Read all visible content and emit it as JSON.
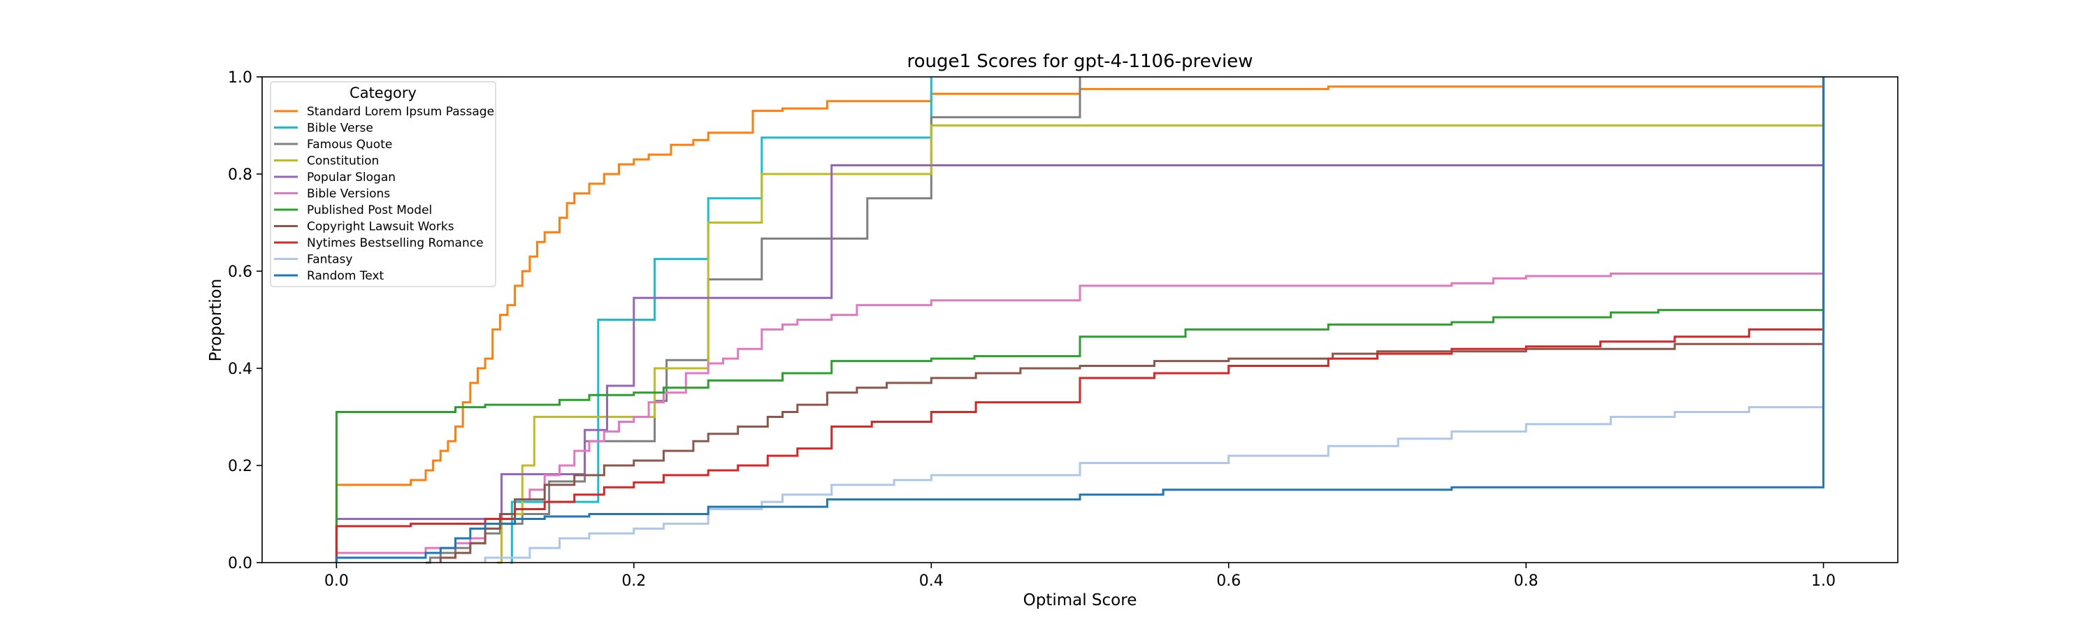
{
  "chart_data": {
    "type": "line",
    "subtype": "ecdf-step",
    "title": "rouge1 Scores for gpt-4-1106-preview",
    "xlabel": "Optimal Score",
    "ylabel": "Proportion",
    "xlim": [
      -0.05,
      1.05
    ],
    "ylim": [
      0,
      1.0
    ],
    "xticks": [
      0.0,
      0.2,
      0.4,
      0.6,
      0.8,
      1.0
    ],
    "xtick_labels": [
      "0.0",
      "0.2",
      "0.4",
      "0.6",
      "0.8",
      "1.0"
    ],
    "yticks": [
      0.0,
      0.2,
      0.4,
      0.6,
      0.8,
      1.0
    ],
    "ytick_labels": [
      "0.0",
      "0.2",
      "0.4",
      "0.6",
      "0.8",
      "1.0"
    ],
    "grid": false,
    "legend": {
      "title": "Category",
      "placement": "top-left"
    },
    "series": [
      {
        "name": "Standard Lorem Ipsum Passage",
        "color": "#ff7f0e",
        "points": [
          [
            0,
            0.16
          ],
          [
            0.05,
            0.17
          ],
          [
            0.06,
            0.19
          ],
          [
            0.065,
            0.21
          ],
          [
            0.07,
            0.23
          ],
          [
            0.075,
            0.25
          ],
          [
            0.08,
            0.28
          ],
          [
            0.085,
            0.33
          ],
          [
            0.09,
            0.37
          ],
          [
            0.095,
            0.4
          ],
          [
            0.1,
            0.42
          ],
          [
            0.105,
            0.48
          ],
          [
            0.11,
            0.51
          ],
          [
            0.115,
            0.53
          ],
          [
            0.12,
            0.57
          ],
          [
            0.125,
            0.6
          ],
          [
            0.13,
            0.63
          ],
          [
            0.135,
            0.66
          ],
          [
            0.14,
            0.68
          ],
          [
            0.15,
            0.71
          ],
          [
            0.155,
            0.74
          ],
          [
            0.16,
            0.76
          ],
          [
            0.17,
            0.78
          ],
          [
            0.18,
            0.8
          ],
          [
            0.19,
            0.82
          ],
          [
            0.2,
            0.83
          ],
          [
            0.21,
            0.84
          ],
          [
            0.225,
            0.86
          ],
          [
            0.24,
            0.87
          ],
          [
            0.25,
            0.885
          ],
          [
            0.28,
            0.93
          ],
          [
            0.3,
            0.935
          ],
          [
            0.33,
            0.95
          ],
          [
            0.4,
            0.965
          ],
          [
            0.5,
            0.975
          ],
          [
            0.667,
            0.98
          ],
          [
            1.0,
            1.0
          ]
        ]
      },
      {
        "name": "Bible Verse",
        "color": "#17becf",
        "points": [
          [
            0.117,
            0
          ],
          [
            0.118,
            0.125
          ],
          [
            0.176,
            0.5
          ],
          [
            0.214,
            0.625
          ],
          [
            0.25,
            0.75
          ],
          [
            0.286,
            0.875
          ],
          [
            0.4,
            1.0
          ]
        ]
      },
      {
        "name": "Famous Quote",
        "color": "#7f7f7f",
        "points": [
          [
            0.06,
            0
          ],
          [
            0.063,
            0.01
          ],
          [
            0.07,
            0.02
          ],
          [
            0.08,
            0.03
          ],
          [
            0.09,
            0.04
          ],
          [
            0.1,
            0.06
          ],
          [
            0.11,
            0.08
          ],
          [
            0.125,
            0.1
          ],
          [
            0.143,
            0.167
          ],
          [
            0.167,
            0.25
          ],
          [
            0.214,
            0.333
          ],
          [
            0.222,
            0.417
          ],
          [
            0.25,
            0.583
          ],
          [
            0.286,
            0.667
          ],
          [
            0.333,
            0.667
          ],
          [
            0.357,
            0.75
          ],
          [
            0.4,
            0.917
          ],
          [
            0.5,
            1.0
          ]
        ]
      },
      {
        "name": "Constitution",
        "color": "#bcbd22",
        "points": [
          [
            0.108,
            0
          ],
          [
            0.111,
            0.1
          ],
          [
            0.125,
            0.2
          ],
          [
            0.133,
            0.3
          ],
          [
            0.2,
            0.3
          ],
          [
            0.214,
            0.4
          ],
          [
            0.25,
            0.7
          ],
          [
            0.286,
            0.8
          ],
          [
            0.4,
            0.9
          ],
          [
            1.0,
            1.0
          ]
        ]
      },
      {
        "name": "Popular Slogan",
        "color": "#9467bd",
        "points": [
          [
            0,
            0.09
          ],
          [
            0.111,
            0.182
          ],
          [
            0.143,
            0.182
          ],
          [
            0.167,
            0.273
          ],
          [
            0.182,
            0.364
          ],
          [
            0.2,
            0.545
          ],
          [
            0.333,
            0.818
          ],
          [
            1.0,
            1.0
          ]
        ]
      },
      {
        "name": "Bible Versions",
        "color": "#e377c2",
        "points": [
          [
            0,
            0.02
          ],
          [
            0.06,
            0.03
          ],
          [
            0.08,
            0.04
          ],
          [
            0.09,
            0.05
          ],
          [
            0.1,
            0.07
          ],
          [
            0.11,
            0.1
          ],
          [
            0.12,
            0.13
          ],
          [
            0.13,
            0.15
          ],
          [
            0.14,
            0.18
          ],
          [
            0.15,
            0.2
          ],
          [
            0.16,
            0.23
          ],
          [
            0.17,
            0.25
          ],
          [
            0.18,
            0.27
          ],
          [
            0.19,
            0.29
          ],
          [
            0.2,
            0.3
          ],
          [
            0.21,
            0.33
          ],
          [
            0.22,
            0.35
          ],
          [
            0.235,
            0.39
          ],
          [
            0.25,
            0.41
          ],
          [
            0.26,
            0.42
          ],
          [
            0.27,
            0.44
          ],
          [
            0.286,
            0.48
          ],
          [
            0.3,
            0.49
          ],
          [
            0.31,
            0.5
          ],
          [
            0.333,
            0.51
          ],
          [
            0.35,
            0.53
          ],
          [
            0.4,
            0.54
          ],
          [
            0.5,
            0.57
          ],
          [
            0.6,
            0.57
          ],
          [
            0.75,
            0.575
          ],
          [
            0.778,
            0.585
          ],
          [
            0.8,
            0.59
          ],
          [
            0.857,
            0.595
          ],
          [
            1.0,
            1.0
          ]
        ]
      },
      {
        "name": "Published Post Model",
        "color": "#2ca02c",
        "points": [
          [
            0,
            0.31
          ],
          [
            0.08,
            0.32
          ],
          [
            0.1,
            0.325
          ],
          [
            0.15,
            0.335
          ],
          [
            0.17,
            0.345
          ],
          [
            0.2,
            0.35
          ],
          [
            0.22,
            0.36
          ],
          [
            0.25,
            0.375
          ],
          [
            0.3,
            0.39
          ],
          [
            0.333,
            0.415
          ],
          [
            0.4,
            0.42
          ],
          [
            0.429,
            0.425
          ],
          [
            0.5,
            0.465
          ],
          [
            0.571,
            0.48
          ],
          [
            0.667,
            0.49
          ],
          [
            0.75,
            0.495
          ],
          [
            0.778,
            0.505
          ],
          [
            0.857,
            0.515
          ],
          [
            0.889,
            0.52
          ],
          [
            1.0,
            1.0
          ]
        ]
      },
      {
        "name": "Copyright Lawsuit Works",
        "color": "#8c564b",
        "points": [
          [
            0.07,
            0.01
          ],
          [
            0.08,
            0.02
          ],
          [
            0.09,
            0.04
          ],
          [
            0.1,
            0.07
          ],
          [
            0.11,
            0.1
          ],
          [
            0.12,
            0.13
          ],
          [
            0.14,
            0.16
          ],
          [
            0.16,
            0.18
          ],
          [
            0.18,
            0.2
          ],
          [
            0.2,
            0.21
          ],
          [
            0.22,
            0.23
          ],
          [
            0.24,
            0.25
          ],
          [
            0.25,
            0.265
          ],
          [
            0.27,
            0.28
          ],
          [
            0.29,
            0.3
          ],
          [
            0.3,
            0.31
          ],
          [
            0.31,
            0.325
          ],
          [
            0.33,
            0.35
          ],
          [
            0.35,
            0.36
          ],
          [
            0.37,
            0.37
          ],
          [
            0.4,
            0.38
          ],
          [
            0.43,
            0.39
          ],
          [
            0.46,
            0.4
          ],
          [
            0.5,
            0.405
          ],
          [
            0.55,
            0.415
          ],
          [
            0.6,
            0.42
          ],
          [
            0.67,
            0.43
          ],
          [
            0.7,
            0.435
          ],
          [
            0.8,
            0.44
          ],
          [
            0.9,
            0.45
          ],
          [
            1.0,
            1.0
          ]
        ]
      },
      {
        "name": "Nytimes Bestselling Romance",
        "color": "#d62728",
        "points": [
          [
            0,
            0.075
          ],
          [
            0.05,
            0.08
          ],
          [
            0.1,
            0.09
          ],
          [
            0.12,
            0.11
          ],
          [
            0.14,
            0.125
          ],
          [
            0.16,
            0.14
          ],
          [
            0.18,
            0.155
          ],
          [
            0.2,
            0.165
          ],
          [
            0.22,
            0.18
          ],
          [
            0.25,
            0.19
          ],
          [
            0.27,
            0.2
          ],
          [
            0.29,
            0.22
          ],
          [
            0.31,
            0.235
          ],
          [
            0.333,
            0.28
          ],
          [
            0.36,
            0.29
          ],
          [
            0.4,
            0.31
          ],
          [
            0.43,
            0.33
          ],
          [
            0.5,
            0.38
          ],
          [
            0.55,
            0.39
          ],
          [
            0.6,
            0.405
          ],
          [
            0.667,
            0.42
          ],
          [
            0.7,
            0.43
          ],
          [
            0.75,
            0.44
          ],
          [
            0.8,
            0.445
          ],
          [
            0.85,
            0.455
          ],
          [
            0.9,
            0.465
          ],
          [
            0.95,
            0.48
          ],
          [
            1.0,
            1.0
          ]
        ]
      },
      {
        "name": "Fantasy",
        "color": "#aec7e8",
        "points": [
          [
            0.1,
            0.01
          ],
          [
            0.13,
            0.03
          ],
          [
            0.15,
            0.05
          ],
          [
            0.17,
            0.06
          ],
          [
            0.2,
            0.07
          ],
          [
            0.22,
            0.08
          ],
          [
            0.25,
            0.11
          ],
          [
            0.286,
            0.125
          ],
          [
            0.3,
            0.14
          ],
          [
            0.333,
            0.16
          ],
          [
            0.375,
            0.17
          ],
          [
            0.4,
            0.18
          ],
          [
            0.5,
            0.205
          ],
          [
            0.6,
            0.22
          ],
          [
            0.667,
            0.24
          ],
          [
            0.714,
            0.255
          ],
          [
            0.75,
            0.27
          ],
          [
            0.8,
            0.285
          ],
          [
            0.857,
            0.3
          ],
          [
            0.9,
            0.31
          ],
          [
            0.95,
            0.32
          ],
          [
            1.0,
            1.0
          ]
        ]
      },
      {
        "name": "Random Text",
        "color": "#1f77b4",
        "points": [
          [
            0,
            0.01
          ],
          [
            0.06,
            0.02
          ],
          [
            0.07,
            0.03
          ],
          [
            0.08,
            0.05
          ],
          [
            0.09,
            0.07
          ],
          [
            0.1,
            0.08
          ],
          [
            0.12,
            0.09
          ],
          [
            0.14,
            0.095
          ],
          [
            0.17,
            0.1
          ],
          [
            0.25,
            0.115
          ],
          [
            0.33,
            0.13
          ],
          [
            0.5,
            0.14
          ],
          [
            0.556,
            0.15
          ],
          [
            0.75,
            0.155
          ],
          [
            1.0,
            1.0
          ]
        ]
      }
    ]
  }
}
